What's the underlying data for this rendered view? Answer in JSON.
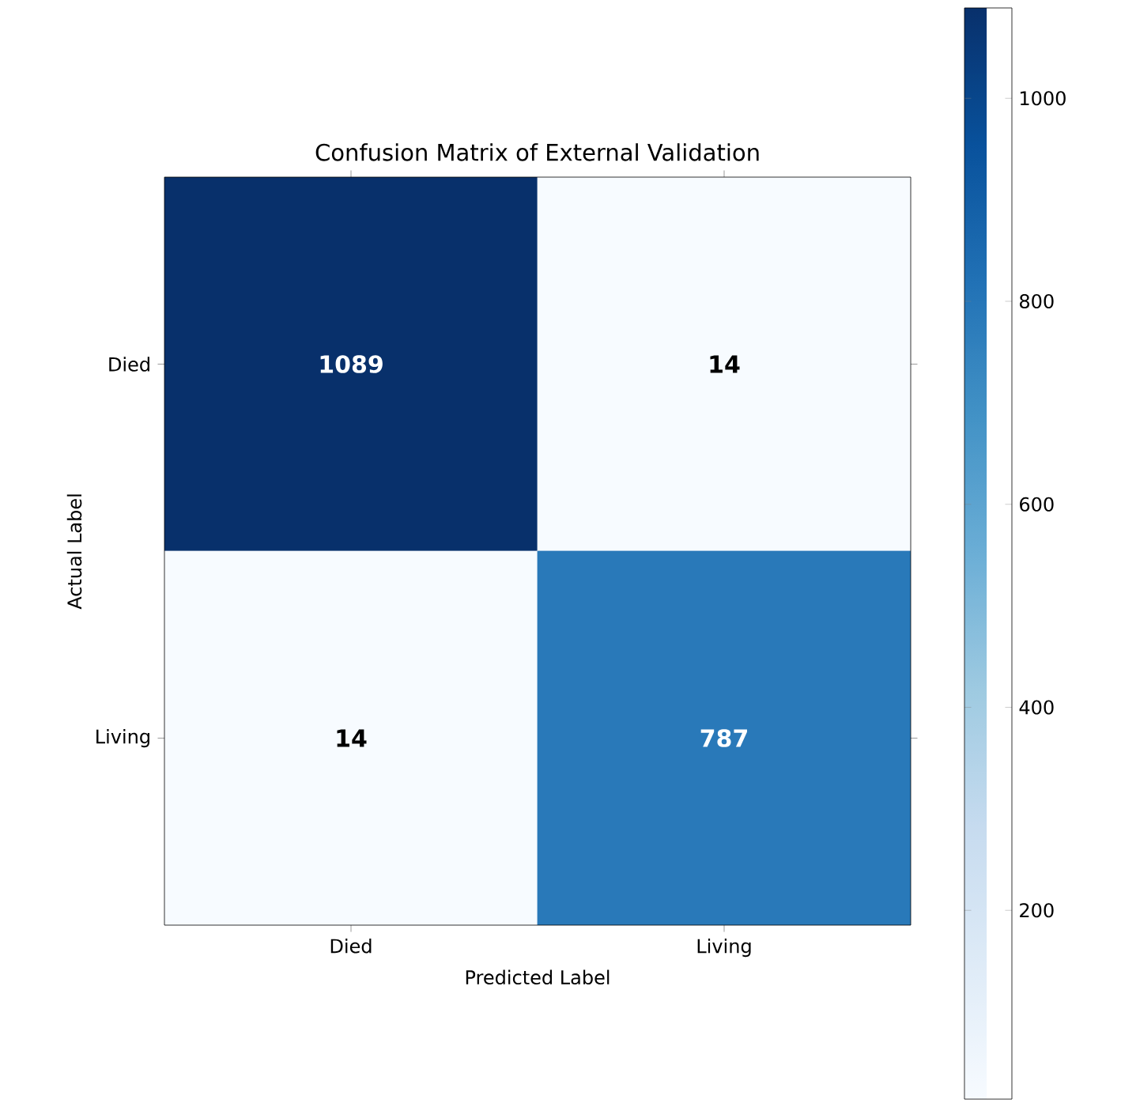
{
  "chart_data": {
    "type": "heatmap",
    "title": "Confusion Matrix of External Validation",
    "xlabel": "Predicted Label",
    "ylabel": "Actual Label",
    "categories": [
      "Died",
      "Living"
    ],
    "y_categories": [
      "Died",
      "Living"
    ],
    "cells": [
      [
        1089,
        14
      ],
      [
        14,
        787
      ]
    ],
    "clim": [
      14,
      1089
    ],
    "cticks": [
      200,
      400,
      600,
      800,
      1000
    ],
    "data_labels": true
  }
}
